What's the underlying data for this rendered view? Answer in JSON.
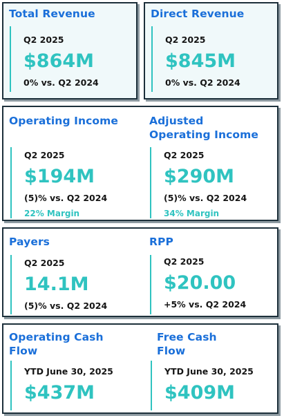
{
  "colors": {
    "title": "#1a6fd9",
    "accent": "#2fc3c0",
    "border": "#1c2f3a",
    "tint": "#f0f9fa"
  },
  "total_revenue": {
    "title": "Total Revenue",
    "period": "Q2 2025",
    "value": "$864M",
    "change": "0% vs. Q2 2024"
  },
  "direct_revenue": {
    "title": "Direct Revenue",
    "period": "Q2 2025",
    "value": "$845M",
    "change": "0% vs. Q2 2024"
  },
  "operating_income": {
    "title": "Operating Income",
    "period": "Q2 2025",
    "value": "$194M",
    "change": "(5)% vs. Q2 2024",
    "margin": "22% Margin"
  },
  "adjusted_operating_income": {
    "title_line1": "Adjusted",
    "title_line2": "Operating Income",
    "period": "Q2 2025",
    "value": "$290M",
    "change": "(5)% vs. Q2 2024",
    "margin": "34% Margin"
  },
  "payers": {
    "title": "Payers",
    "period": "Q2 2025",
    "value": "14.1M",
    "change": "(5)% vs. Q2 2024"
  },
  "rpp": {
    "title": "RPP",
    "period": "Q2 2025",
    "value": "$20.00",
    "change": "+5% vs. Q2 2024"
  },
  "operating_cash_flow": {
    "title_line1": "Operating Cash",
    "title_line2": "Flow",
    "period": "YTD June 30, 2025",
    "value": "$437M"
  },
  "free_cash_flow": {
    "title_line1": "Free Cash",
    "title_line2": "Flow",
    "period": "YTD June 30, 2025",
    "value": "$409M"
  }
}
